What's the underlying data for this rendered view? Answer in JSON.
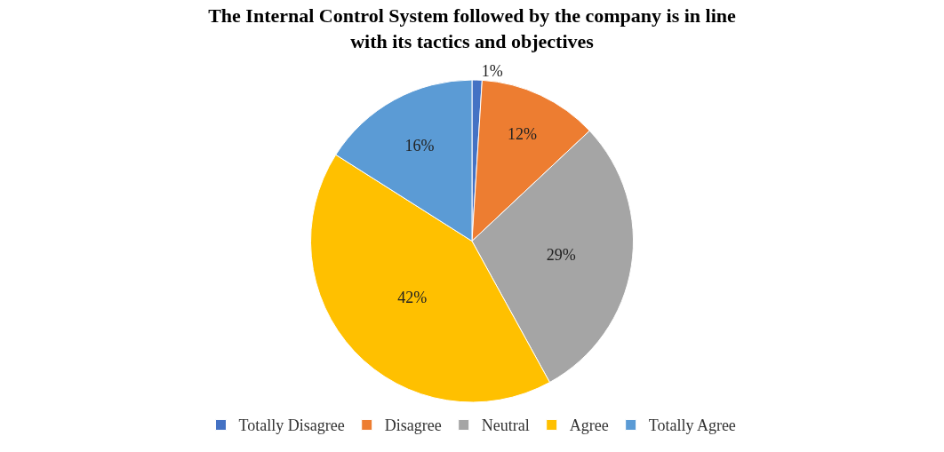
{
  "chart_data": {
    "type": "pie",
    "title": "The Internal Control System followed by the company is in line\nwith its tactics and objectives",
    "categories": [
      "Totally Disagree",
      "Disagree",
      "Neutral",
      "Agree",
      "Totally Agree"
    ],
    "values": [
      1,
      12,
      29,
      42,
      16
    ],
    "value_labels": [
      "1%",
      "12%",
      "29%",
      "42%",
      "16%"
    ],
    "colors": [
      "#4472c4",
      "#ed7d31",
      "#a5a5a5",
      "#ffc000",
      "#5b9bd5"
    ],
    "legend": "bottom"
  }
}
